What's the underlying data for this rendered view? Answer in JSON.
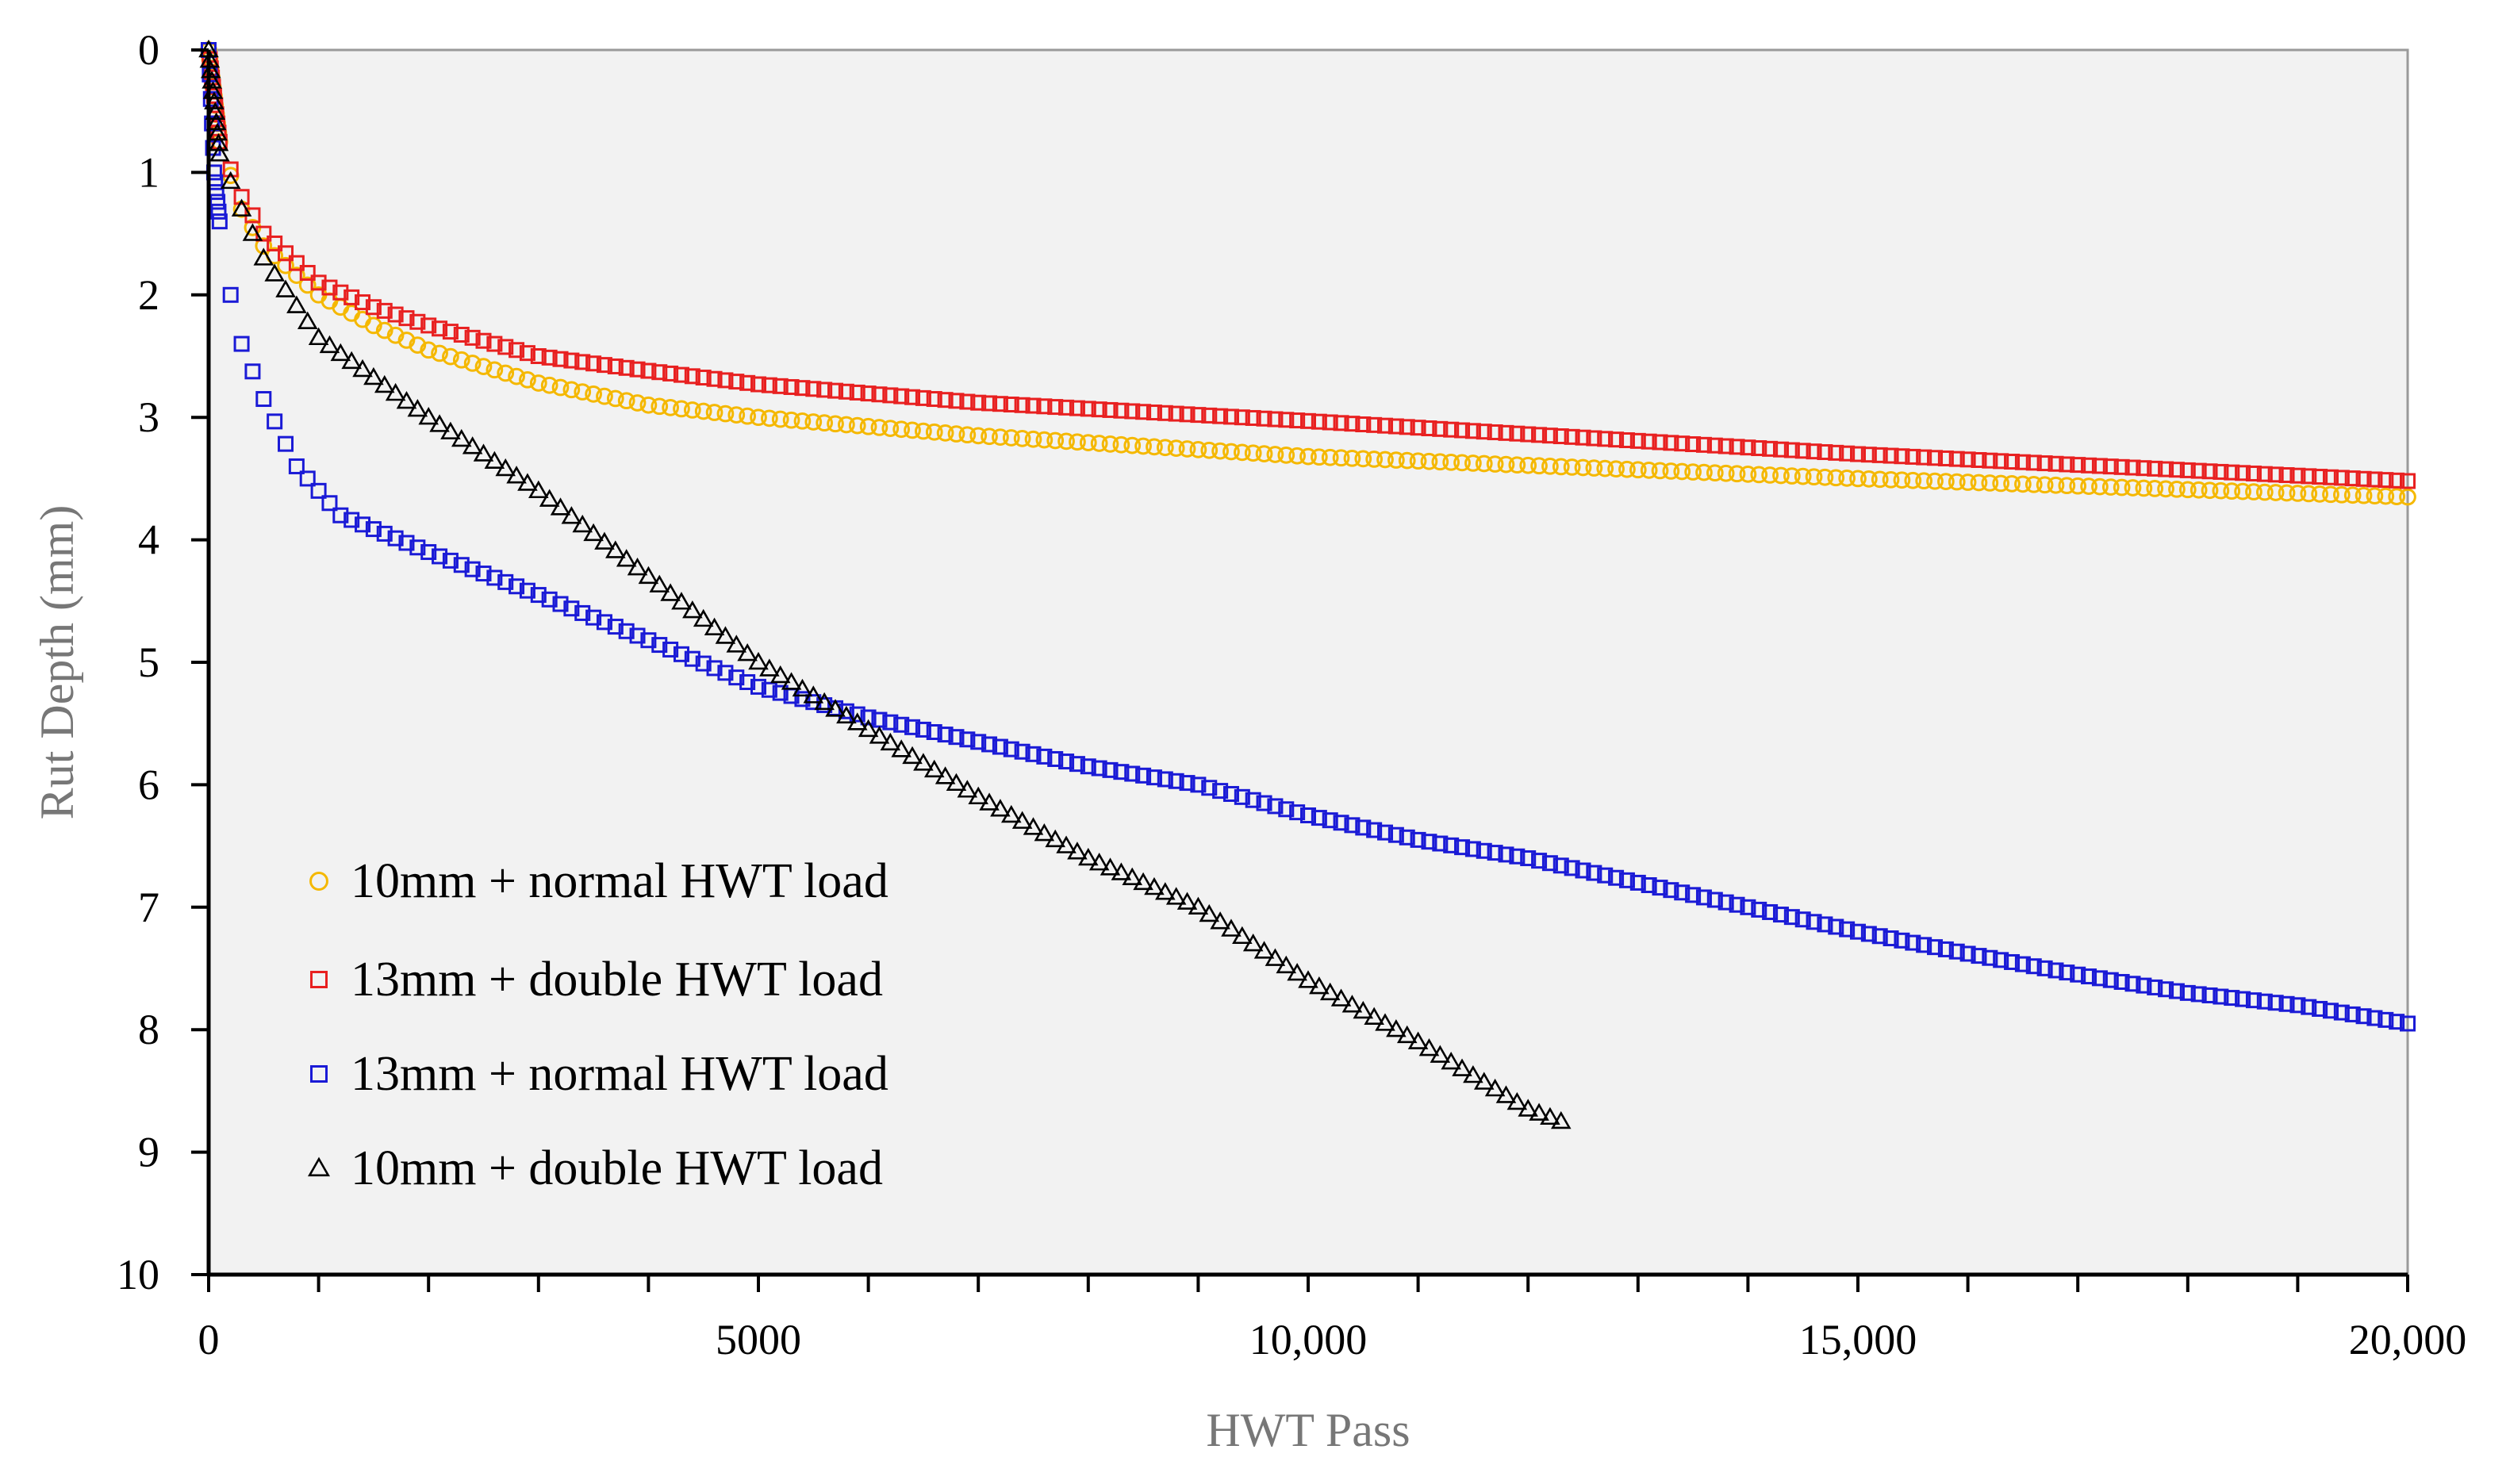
{
  "chart_data": {
    "type": "scatter",
    "title": "",
    "xlabel": "HWT Pass",
    "ylabel": "Rut Depth (mm)",
    "xlim": [
      0,
      20000
    ],
    "ylim": [
      0,
      10
    ],
    "y_inverted": true,
    "grid": false,
    "plot_background": "#f2f2f2",
    "legend_position": "bottom-left",
    "x_ticks": [
      {
        "value": 0,
        "label": "0",
        "color": "#666666"
      },
      {
        "value": 5000,
        "label": "5000",
        "color": "#666666"
      },
      {
        "value": 10000,
        "label": "10,000",
        "color": "#000000"
      },
      {
        "value": 15000,
        "label": "15,000",
        "color": "#000000"
      },
      {
        "value": 20000,
        "label": "20,000",
        "color": "#000000"
      }
    ],
    "x_minor_step": 1000,
    "y_ticks": [
      {
        "value": 0,
        "label": "0"
      },
      {
        "value": 1,
        "label": "1"
      },
      {
        "value": 2,
        "label": "2"
      },
      {
        "value": 3,
        "label": "3"
      },
      {
        "value": 4,
        "label": "4"
      },
      {
        "value": 5,
        "label": "5"
      },
      {
        "value": 6,
        "label": "6"
      },
      {
        "value": 7,
        "label": "7"
      },
      {
        "value": 8,
        "label": "8"
      },
      {
        "value": 9,
        "label": "9"
      },
      {
        "value": 10,
        "label": "10"
      }
    ],
    "series": [
      {
        "name": "10mm + normal HWT load",
        "marker": "circle",
        "color": "#f5b800",
        "x_start": 0,
        "x_end": 20000,
        "x_step": 100,
        "anchors": [
          [
            0,
            0
          ],
          [
            100,
            0.75
          ],
          [
            300,
            1.3
          ],
          [
            500,
            1.6
          ],
          [
            1000,
            2.0
          ],
          [
            1500,
            2.25
          ],
          [
            2000,
            2.45
          ],
          [
            3000,
            2.72
          ],
          [
            4000,
            2.9
          ],
          [
            5000,
            3.0
          ],
          [
            7000,
            3.15
          ],
          [
            10000,
            3.32
          ],
          [
            15000,
            3.5
          ],
          [
            20000,
            3.65
          ]
        ]
      },
      {
        "name": "13mm + double HWT load",
        "marker": "square",
        "color": "#e82020",
        "x_start": 0,
        "x_end": 20000,
        "x_step": 100,
        "anchors": [
          [
            0,
            0
          ],
          [
            100,
            0.75
          ],
          [
            300,
            1.2
          ],
          [
            500,
            1.5
          ],
          [
            1000,
            1.9
          ],
          [
            1500,
            2.1
          ],
          [
            2000,
            2.25
          ],
          [
            3000,
            2.5
          ],
          [
            4000,
            2.62
          ],
          [
            5000,
            2.73
          ],
          [
            7000,
            2.88
          ],
          [
            10000,
            3.03
          ],
          [
            15000,
            3.3
          ],
          [
            20000,
            3.52
          ]
        ]
      },
      {
        "name": "13mm + normal HWT load",
        "marker": "square",
        "color": "#1a1ad6",
        "x_start": 0,
        "x_end": 20000,
        "x_step": 100,
        "anchors": [
          [
            0,
            0
          ],
          [
            50,
            1.0
          ],
          [
            150,
            1.8
          ],
          [
            300,
            2.4
          ],
          [
            500,
            2.85
          ],
          [
            800,
            3.4
          ],
          [
            1200,
            3.8
          ],
          [
            2000,
            4.1
          ],
          [
            3000,
            4.45
          ],
          [
            4000,
            4.82
          ],
          [
            5000,
            5.2
          ],
          [
            6000,
            5.45
          ],
          [
            7000,
            5.65
          ],
          [
            8000,
            5.85
          ],
          [
            9000,
            6.0
          ],
          [
            10000,
            6.25
          ],
          [
            11000,
            6.45
          ],
          [
            12000,
            6.6
          ],
          [
            13000,
            6.8
          ],
          [
            14000,
            7.0
          ],
          [
            15000,
            7.2
          ],
          [
            16000,
            7.38
          ],
          [
            17000,
            7.55
          ],
          [
            18000,
            7.7
          ],
          [
            19000,
            7.8
          ],
          [
            20000,
            7.95
          ]
        ]
      },
      {
        "name": "10mm + double HWT load",
        "marker": "triangle",
        "color": "#000000",
        "x_start": 0,
        "x_end": 12300,
        "x_step": 100,
        "anchors": [
          [
            0,
            0
          ],
          [
            100,
            0.85
          ],
          [
            300,
            1.3
          ],
          [
            500,
            1.7
          ],
          [
            1000,
            2.35
          ],
          [
            2000,
            3.0
          ],
          [
            3000,
            3.6
          ],
          [
            4000,
            4.3
          ],
          [
            5000,
            5.0
          ],
          [
            6000,
            5.55
          ],
          [
            7000,
            6.1
          ],
          [
            8000,
            6.6
          ],
          [
            9000,
            7.0
          ],
          [
            10000,
            7.6
          ],
          [
            11000,
            8.1
          ],
          [
            12000,
            8.65
          ],
          [
            12300,
            8.75
          ]
        ]
      }
    ]
  }
}
